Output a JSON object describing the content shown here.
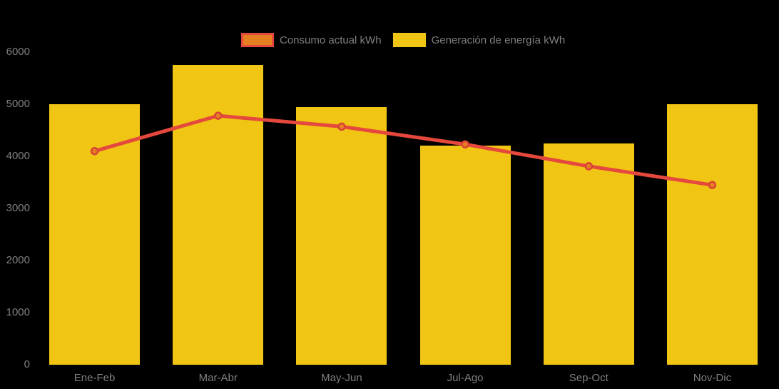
{
  "page": {
    "background_color": "#000000",
    "text_color": "#7f7f7f"
  },
  "legend": {
    "items": [
      {
        "label": "Consumo actual kWh",
        "type": "line",
        "swatch_fill": "#E67E22",
        "swatch_border": "#E5483C"
      },
      {
        "label": "Generación de energía kWh",
        "type": "bar",
        "swatch_fill": "#F0C514"
      }
    ]
  },
  "chart_data": {
    "type": "bar+line",
    "title": "",
    "categories": [
      "Ene-Feb",
      "Mar-Abr",
      "May-Jun",
      "Jul-Ago",
      "Sep-Oct",
      "Nov-Dic"
    ],
    "series": [
      {
        "name": "Consumo actual kWh",
        "type": "line",
        "color": "#E5483C",
        "marker_fill": "#E67E22",
        "marker_stroke": "#D84335",
        "values": [
          4100,
          4780,
          4570,
          4230,
          3810,
          3450
        ]
      },
      {
        "name": "Generación de energía kWh",
        "type": "bar",
        "color": "#F0C514",
        "values": [
          5000,
          5750,
          4950,
          4200,
          4250,
          5000
        ]
      }
    ],
    "xlabel": "",
    "ylabel": "",
    "ylim": [
      0,
      6000
    ],
    "yticks": [
      0,
      1000,
      2000,
      3000,
      4000,
      5000,
      6000
    ],
    "grid": false,
    "legend_position": "top"
  }
}
